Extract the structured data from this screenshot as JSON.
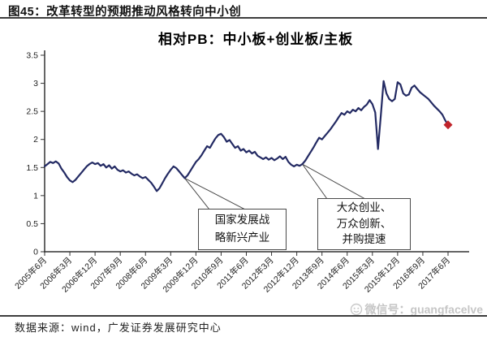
{
  "header": {
    "title": "图45：改革转型的预期推动风格转向中小创"
  },
  "chart_data": {
    "type": "line",
    "title": "相对PB：中小板+创业板/主板",
    "x_start": "2005年6月",
    "x_interval": "monthly",
    "x_tick_labels": [
      "2005年6月",
      "2006年3月",
      "2006年12月",
      "2007年9月",
      "2008年6月",
      "2009年3月",
      "2009年12月",
      "2010年9月",
      "2011年6月",
      "2012年3月",
      "2012年12月",
      "2013年9月",
      "2014年6月",
      "2015年3月",
      "2015年12月",
      "2016年9月",
      "2017年6月"
    ],
    "y_ticks": [
      0,
      0.5,
      1,
      1.5,
      2,
      2.5,
      3,
      3.5
    ],
    "ylim": [
      0,
      3.5
    ],
    "grid": false,
    "legend": "none",
    "line_color": "#232a63",
    "marker": {
      "shape": "diamond",
      "color": "#c0242b",
      "at": "last-point",
      "value": 2.26
    },
    "values": [
      1.52,
      1.56,
      1.6,
      1.58,
      1.61,
      1.57,
      1.48,
      1.41,
      1.33,
      1.27,
      1.24,
      1.28,
      1.34,
      1.4,
      1.46,
      1.52,
      1.56,
      1.59,
      1.56,
      1.58,
      1.53,
      1.56,
      1.5,
      1.54,
      1.48,
      1.52,
      1.46,
      1.43,
      1.45,
      1.41,
      1.43,
      1.39,
      1.36,
      1.38,
      1.34,
      1.31,
      1.33,
      1.28,
      1.23,
      1.16,
      1.08,
      1.13,
      1.22,
      1.31,
      1.39,
      1.46,
      1.52,
      1.49,
      1.43,
      1.37,
      1.31,
      1.36,
      1.44,
      1.52,
      1.6,
      1.65,
      1.72,
      1.8,
      1.88,
      1.85,
      1.94,
      2.02,
      2.08,
      2.1,
      2.04,
      1.96,
      1.99,
      1.92,
      1.85,
      1.88,
      1.8,
      1.83,
      1.77,
      1.8,
      1.75,
      1.78,
      1.71,
      1.68,
      1.65,
      1.68,
      1.64,
      1.67,
      1.63,
      1.66,
      1.7,
      1.65,
      1.69,
      1.6,
      1.55,
      1.52,
      1.55,
      1.53,
      1.56,
      1.62,
      1.7,
      1.78,
      1.86,
      1.95,
      2.03,
      2.0,
      2.06,
      2.12,
      2.18,
      2.25,
      2.32,
      2.4,
      2.47,
      2.44,
      2.5,
      2.47,
      2.53,
      2.5,
      2.56,
      2.52,
      2.58,
      2.62,
      2.7,
      2.63,
      2.48,
      1.83,
      2.43,
      3.04,
      2.82,
      2.72,
      2.68,
      2.72,
      3.02,
      2.98,
      2.82,
      2.78,
      2.8,
      2.92,
      2.96,
      2.9,
      2.84,
      2.8,
      2.76,
      2.72,
      2.66,
      2.6,
      2.55,
      2.5,
      2.44,
      2.34,
      2.26
    ],
    "annotations": [
      {
        "lines": [
          "国家发展战",
          "略新兴产业"
        ],
        "points_to_month_index": 50
      },
      {
        "lines": [
          "大众创业、",
          "万众创新、",
          "并购提速"
        ],
        "points_to_month_index": 92
      }
    ]
  },
  "footer": {
    "source": "数据来源：wind，广发证券发展研究中心",
    "watermark": "微信号：guangfacelve"
  }
}
